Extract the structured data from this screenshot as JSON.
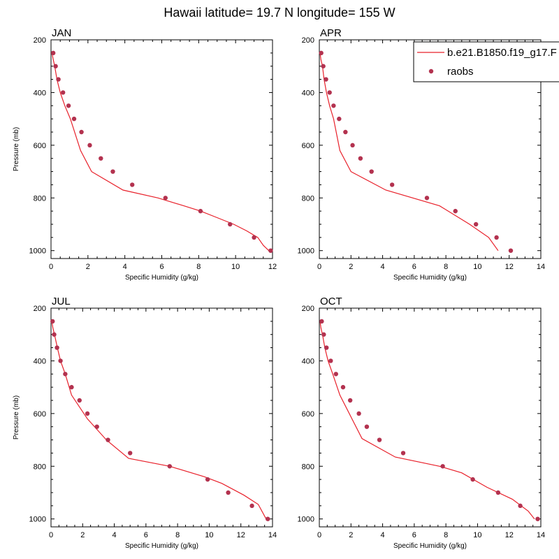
{
  "figure_title": "Hawaii  latitude= 19.7 N longitude= 155 W",
  "colors": {
    "model": "#e8202a",
    "raobs": "#b3324f",
    "axis": "#000000"
  },
  "legend": {
    "items": [
      {
        "label": "b.e21.B1850.f19_g17.F",
        "marker": "line"
      },
      {
        "label": "raobs",
        "marker": "dot"
      }
    ]
  },
  "chart_data": [
    {
      "type": "line",
      "panel_title": "JAN",
      "xlabel": "Specific Humidity (g/kg)",
      "ylabel": "Pressure (mb)",
      "xlim": [
        0,
        12
      ],
      "ylim": [
        200,
        1030
      ],
      "y_reversed": true,
      "xticks": [
        0,
        2,
        4,
        6,
        8,
        10,
        12
      ],
      "yticks": [
        200,
        400,
        600,
        800,
        1000
      ],
      "series": [
        {
          "name": "b.e21.B1850.f19_g17.F",
          "kind": "line",
          "x": [
            0.05,
            0.12,
            0.2,
            0.32,
            0.5,
            0.75,
            1.05,
            1.6,
            2.2,
            3.9,
            5.8,
            7.2,
            8.1,
            9.0,
            9.9,
            10.6,
            11.2,
            11.5,
            11.8
          ],
          "y": [
            250,
            275,
            300,
            350,
            400,
            450,
            500,
            620,
            700,
            770,
            800,
            830,
            850,
            875,
            900,
            925,
            950,
            980,
            1000
          ]
        },
        {
          "name": "raobs",
          "kind": "scatter",
          "x": [
            0.12,
            0.25,
            0.4,
            0.65,
            0.95,
            1.25,
            1.65,
            2.1,
            2.7,
            3.35,
            4.4,
            6.2,
            8.1,
            9.7,
            11.0,
            11.9
          ],
          "y": [
            250,
            300,
            350,
            400,
            450,
            500,
            550,
            600,
            650,
            700,
            750,
            800,
            850,
            900,
            950,
            1000
          ]
        }
      ]
    },
    {
      "type": "line",
      "panel_title": "APR",
      "xlabel": "Specific Humidity (g/kg)",
      "ylabel": "",
      "xlim": [
        0,
        14
      ],
      "ylim": [
        200,
        1030
      ],
      "y_reversed": true,
      "xticks": [
        0,
        2,
        4,
        6,
        8,
        10,
        12,
        14
      ],
      "yticks": [
        200,
        400,
        600,
        800,
        1000
      ],
      "series": [
        {
          "name": "b.e21.B1850.f19_g17.F",
          "kind": "line",
          "x": [
            0.05,
            0.1,
            0.2,
            0.3,
            0.45,
            0.65,
            0.9,
            1.3,
            2.0,
            4.2,
            7.6,
            9.5,
            10.7,
            11.3
          ],
          "y": [
            250,
            275,
            300,
            350,
            400,
            450,
            500,
            620,
            700,
            770,
            830,
            900,
            950,
            1000
          ]
        },
        {
          "name": "raobs",
          "kind": "scatter",
          "x": [
            0.12,
            0.25,
            0.42,
            0.65,
            0.9,
            1.25,
            1.65,
            2.1,
            2.6,
            3.3,
            4.6,
            6.8,
            8.6,
            9.9,
            11.2,
            12.1
          ],
          "y": [
            250,
            300,
            350,
            400,
            450,
            500,
            550,
            600,
            650,
            700,
            750,
            800,
            850,
            900,
            950,
            1000
          ]
        }
      ]
    },
    {
      "type": "line",
      "panel_title": "JUL",
      "xlabel": "Specific Humidity (g/kg)",
      "ylabel": "Pressure (mb)",
      "xlim": [
        0,
        14
      ],
      "ylim": [
        200,
        1030
      ],
      "y_reversed": true,
      "xticks": [
        0,
        2,
        4,
        6,
        8,
        10,
        12,
        14
      ],
      "yticks": [
        200,
        400,
        600,
        800,
        1000
      ],
      "series": [
        {
          "name": "b.e21.B1850.f19_g17.F",
          "kind": "line",
          "x": [
            0.05,
            0.12,
            0.22,
            0.4,
            0.6,
            0.9,
            1.3,
            2.3,
            3.5,
            4.9,
            7.5,
            9.7,
            10.8,
            12.2,
            13.1,
            13.6
          ],
          "y": [
            250,
            275,
            300,
            350,
            400,
            450,
            530,
            620,
            700,
            770,
            800,
            840,
            865,
            910,
            945,
            1000
          ]
        },
        {
          "name": "raobs",
          "kind": "scatter",
          "x": [
            0.1,
            0.2,
            0.38,
            0.6,
            0.9,
            1.3,
            1.8,
            2.3,
            2.9,
            3.6,
            5.0,
            7.5,
            9.9,
            11.2,
            12.7,
            13.7
          ],
          "y": [
            250,
            300,
            350,
            400,
            450,
            500,
            550,
            600,
            650,
            700,
            750,
            800,
            850,
            900,
            950,
            1000
          ]
        }
      ]
    },
    {
      "type": "line",
      "panel_title": "OCT",
      "xlabel": "Specific Humidity (g/kg)",
      "ylabel": "",
      "xlim": [
        0,
        14
      ],
      "ylim": [
        200,
        1030
      ],
      "y_reversed": true,
      "xticks": [
        0,
        2,
        4,
        6,
        8,
        10,
        12,
        14
      ],
      "yticks": [
        200,
        400,
        600,
        800,
        1000
      ],
      "series": [
        {
          "name": "b.e21.B1850.f19_g17.F",
          "kind": "line",
          "x": [
            0.05,
            0.1,
            0.2,
            0.35,
            0.55,
            0.85,
            1.3,
            2.7,
            4.8,
            7.6,
            9.0,
            10.6,
            12.2,
            13.2,
            13.6
          ],
          "y": [
            250,
            275,
            300,
            350,
            400,
            450,
            530,
            695,
            765,
            800,
            825,
            880,
            925,
            970,
            1000
          ]
        },
        {
          "name": "raobs",
          "kind": "scatter",
          "x": [
            0.15,
            0.28,
            0.45,
            0.72,
            1.05,
            1.5,
            1.95,
            2.5,
            3.0,
            3.8,
            5.3,
            7.8,
            9.7,
            11.3,
            12.7,
            13.8
          ],
          "y": [
            250,
            300,
            350,
            400,
            450,
            500,
            550,
            600,
            650,
            700,
            750,
            800,
            850,
            900,
            950,
            1000
          ]
        }
      ]
    }
  ]
}
